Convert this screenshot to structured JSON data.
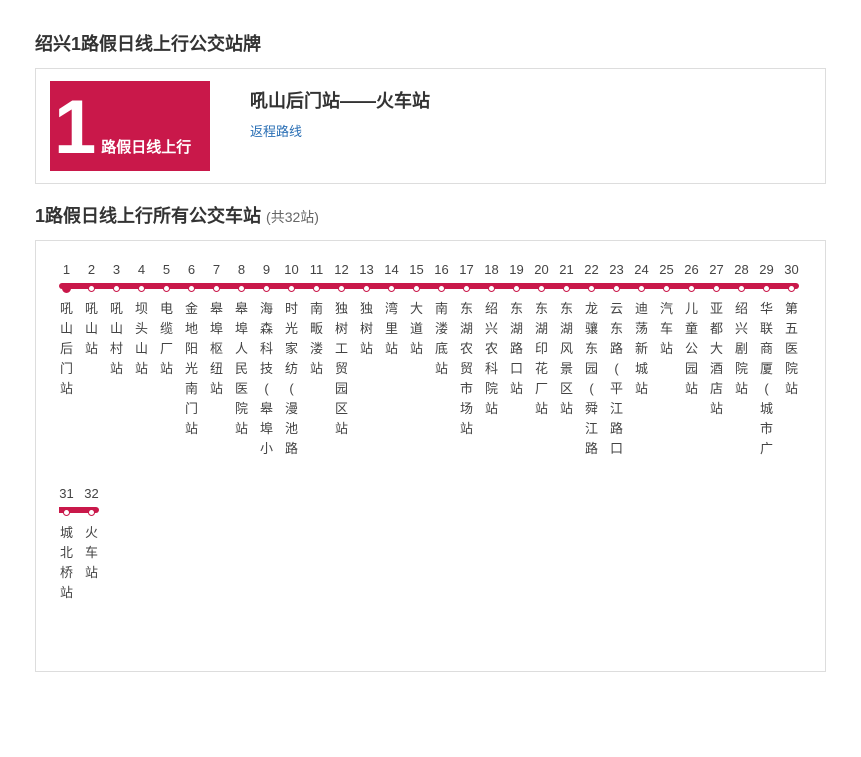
{
  "page_title": "绍兴1路假日线上行公交站牌",
  "badge": {
    "number": "1",
    "suffix": "路假日线上行"
  },
  "route_title": "吼山后门站——火车站",
  "return_link_label": "返程路线",
  "stops_title_prefix": "1路假日线上行所有公交车站",
  "stops_count_text": "(共32站)",
  "line_color": "#c9184a",
  "stops_per_row": 30,
  "stops": [
    "吼山后门站",
    "吼山站",
    "吼山村站",
    "坝头山站",
    "电缆厂站",
    "金地阳光南门站",
    "皋埠枢纽站",
    "皋埠人民医院站",
    "海森科技(皋埠小",
    "时光家纺(漫池路",
    "南畈溇站",
    "独树工贸园区站",
    "独树站",
    "湾里站",
    "大道站",
    "南溇底站",
    "东湖农贸市场站",
    "绍兴农科院站",
    "东湖路口站",
    "东湖印花厂站",
    "东湖风景区站",
    "龙骧东园(舜江路口)",
    "云东路(平江路口",
    "迪荡新城站",
    "汽车站",
    "儿童公园站",
    "亚都大酒店站",
    "绍兴剧院站",
    "华联商厦(城市广",
    "第五医院站",
    "城北桥站",
    "火车站"
  ]
}
